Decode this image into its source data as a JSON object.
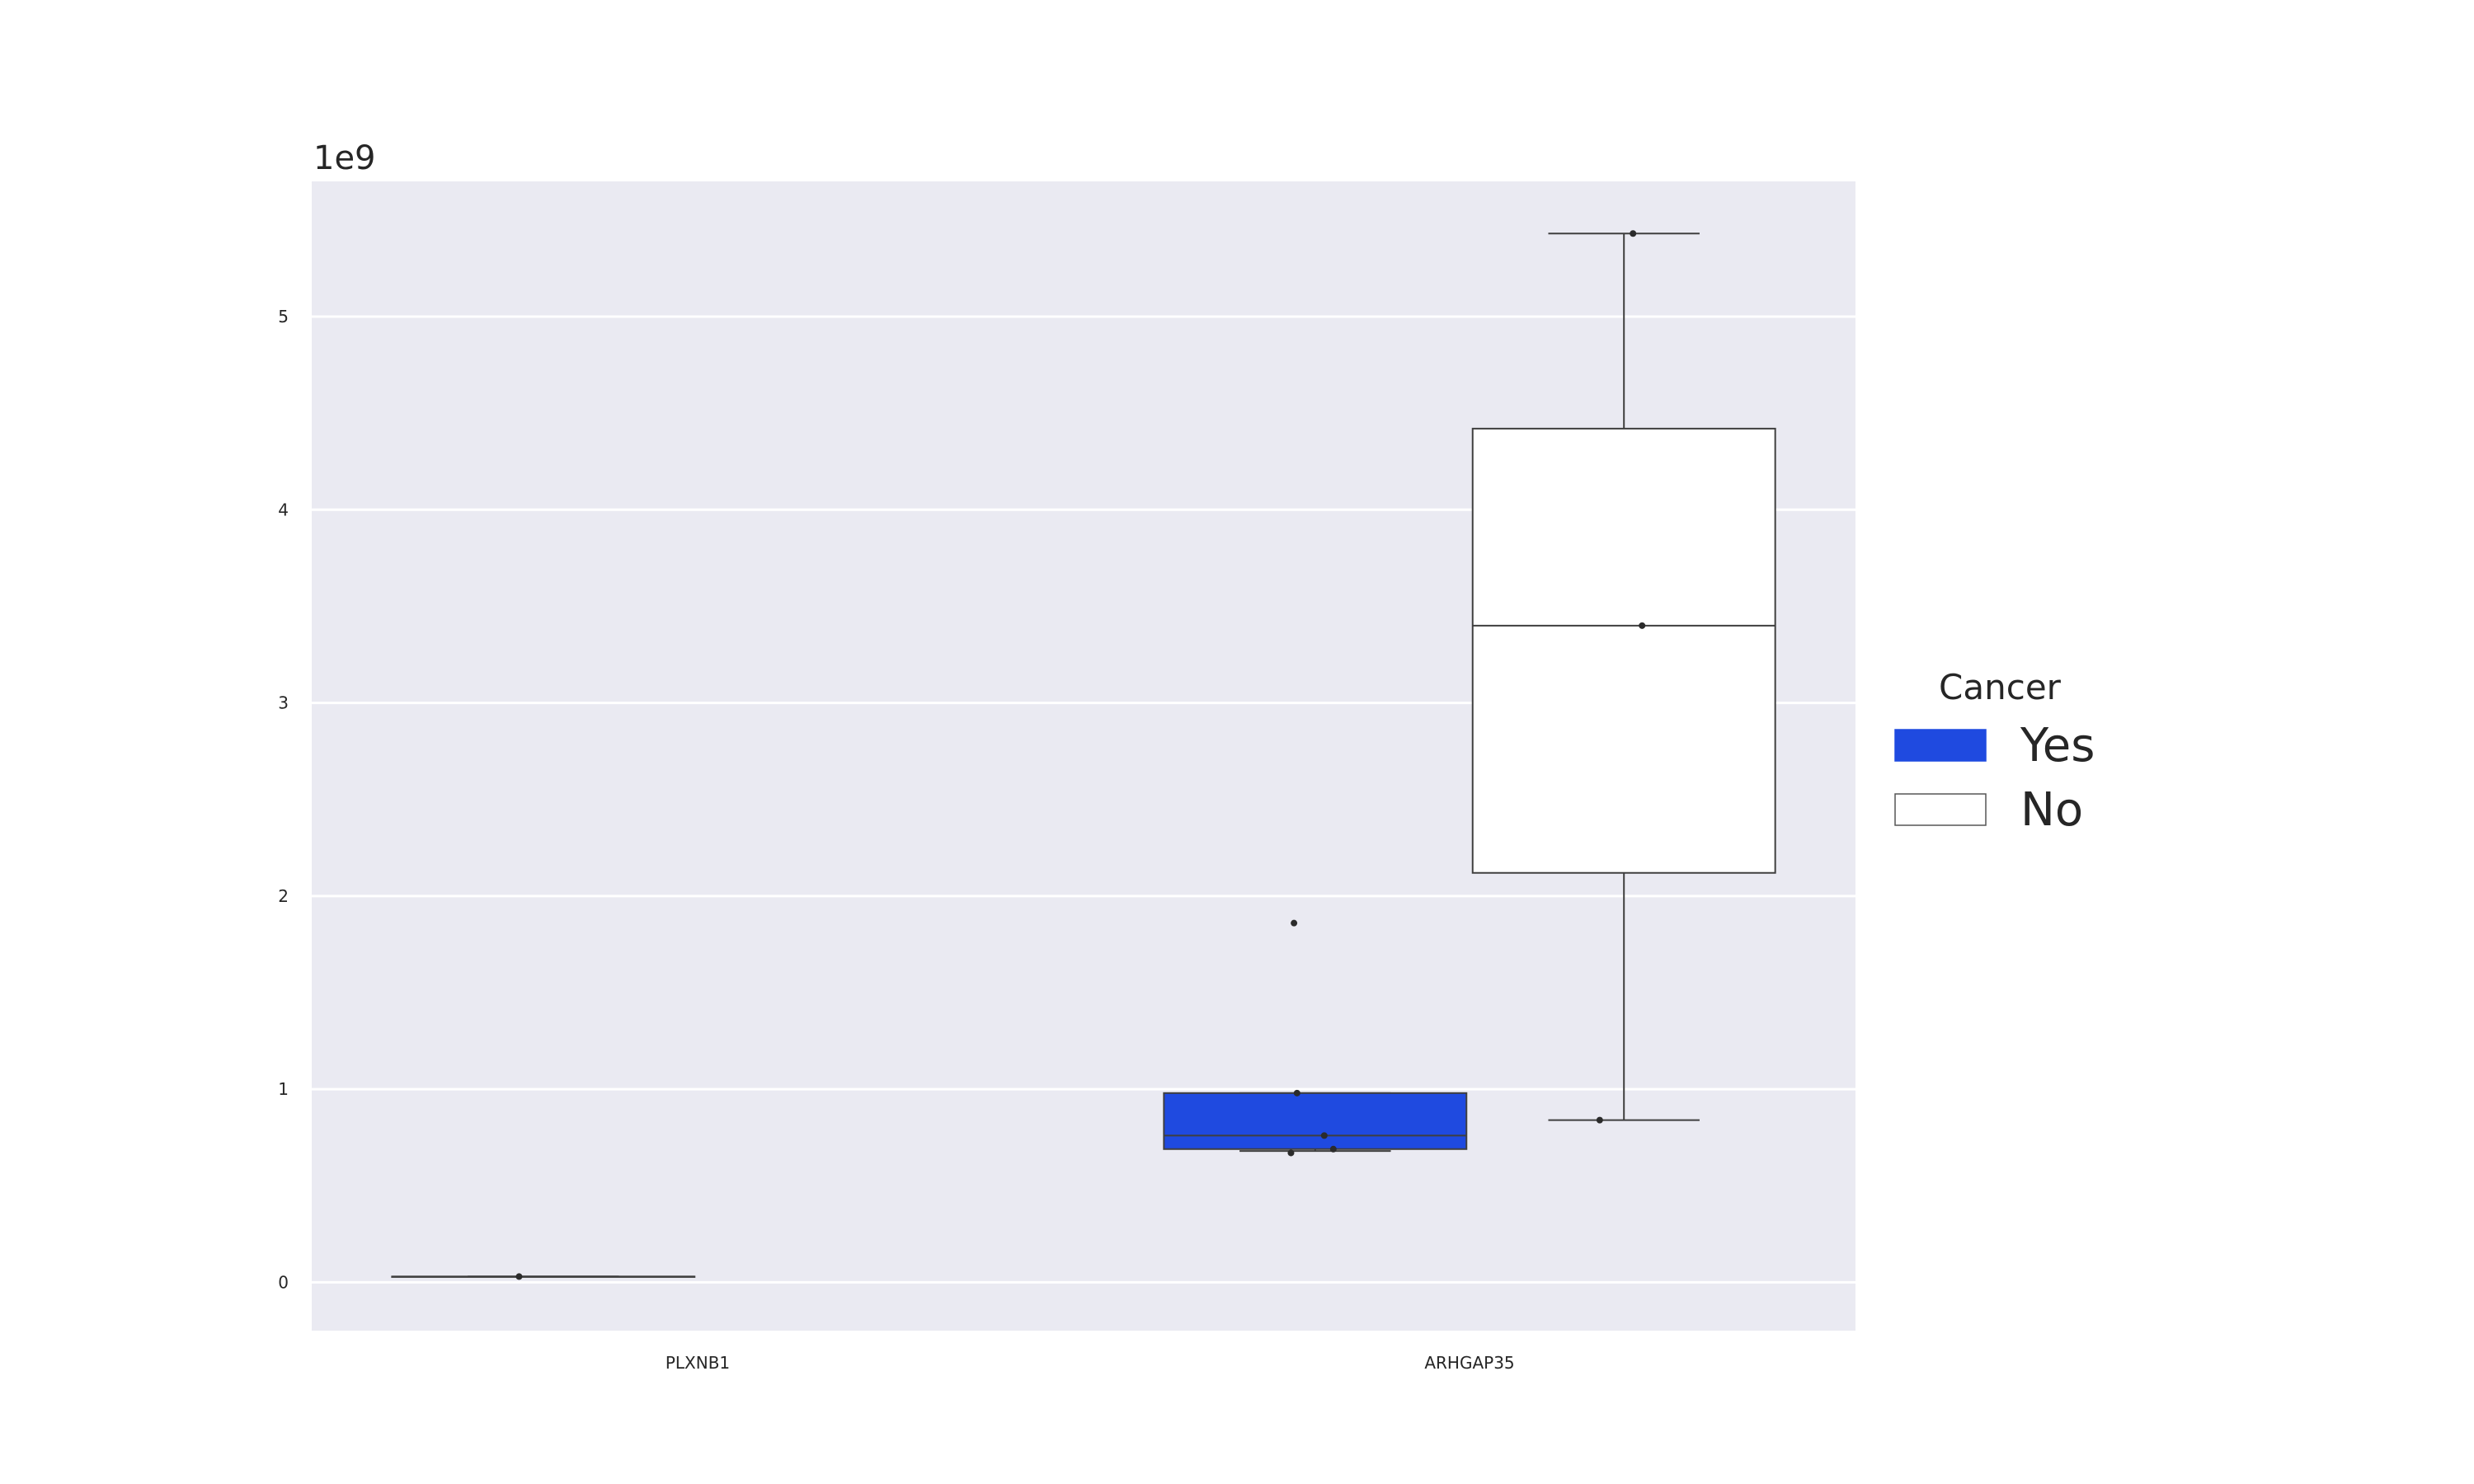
{
  "chart_data": {
    "type": "box",
    "title": "",
    "xlabel": "",
    "ylabel": "",
    "y_scale_label": "1e9",
    "y_scale_factor": 1000000000,
    "categories": [
      "PLXNB1",
      "ARHGAP35"
    ],
    "ylim": [
      -0.25,
      5.7
    ],
    "yticks": [
      0,
      1,
      2,
      3,
      4,
      5
    ],
    "grid": true,
    "legend": {
      "title": "Cancer",
      "position": "right",
      "entries": [
        "Yes",
        "No"
      ]
    },
    "series": [
      {
        "name": "Yes",
        "color": "#1f4ae0",
        "boxes": [
          {
            "category": "PLXNB1",
            "whislo": 0.03,
            "q1": 0.03,
            "med": 0.03,
            "q3": 0.03,
            "whishi": 0.03,
            "points": [
              0.03
            ]
          },
          {
            "category": "ARHGAP35",
            "whislo": 0.68,
            "q1": 0.69,
            "med": 0.76,
            "q3": 0.98,
            "whishi": 0.98,
            "points": [
              0.67,
              0.69,
              0.76,
              0.98,
              1.86
            ]
          }
        ]
      },
      {
        "name": "No",
        "color": "#ffffff",
        "boxes": [
          {
            "category": "PLXNB1",
            "empty": true,
            "points": []
          },
          {
            "category": "ARHGAP35",
            "whislo": 0.84,
            "q1": 2.12,
            "med": 3.4,
            "q3": 4.42,
            "whishi": 5.43,
            "points": [
              0.84,
              3.4,
              5.43
            ]
          }
        ]
      }
    ]
  }
}
